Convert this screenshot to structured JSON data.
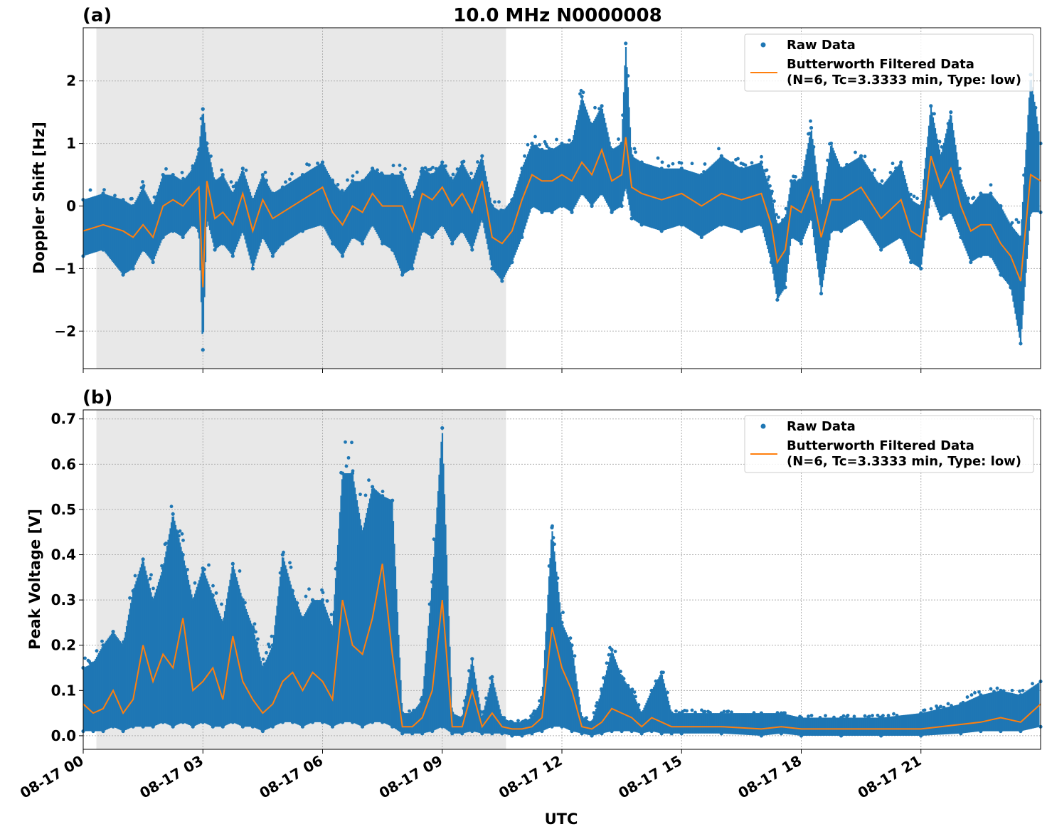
{
  "figure": {
    "title": "10.0 MHz N0000008",
    "xlabel": "UTC",
    "x_tick_labels": [
      "08-17 00",
      "08-17 03",
      "08-17 06",
      "08-17 09",
      "08-17 12",
      "08-17 15",
      "08-17 18",
      "08-17 21"
    ],
    "colors": {
      "raw": "#1f77b4",
      "filtered": "#ff7f0e",
      "shade": "#e8e8e8",
      "grid": "#b0b0b0"
    }
  },
  "legend": {
    "raw_label": "Raw Data",
    "filtered_line1": "Butterworth Filtered Data",
    "filtered_line2": "(N=6, Tc=3.3333 min, Type: low)"
  },
  "chart_data": [
    {
      "type": "scatter",
      "panel_label": "(a)",
      "title": "10.0 MHz N0000008",
      "xlabel": "",
      "ylabel": "Doppler Shift [Hz]",
      "x_unit": "hours UTC on 08-17",
      "xlim": [
        0,
        24
      ],
      "ylim": [
        -2.6,
        2.85
      ],
      "yticks": [
        -2,
        -1,
        0,
        1,
        2
      ],
      "ytick_labels": [
        "−2",
        "−1",
        "0",
        "1",
        "2"
      ],
      "grid": true,
      "legend_position": "upper-right",
      "shaded_interval": [
        0.33,
        10.6
      ],
      "series": [
        {
          "name": "Butterworth Filtered Data",
          "kind": "line",
          "x": [
            0,
            0.5,
            1,
            1.25,
            1.5,
            1.75,
            2,
            2.25,
            2.5,
            2.75,
            2.9,
            3.0,
            3.1,
            3.3,
            3.5,
            3.75,
            4,
            4.25,
            4.5,
            4.75,
            5,
            5.5,
            6,
            6.25,
            6.5,
            6.75,
            7,
            7.25,
            7.5,
            7.75,
            8,
            8.25,
            8.5,
            8.75,
            9,
            9.25,
            9.5,
            9.75,
            10,
            10.25,
            10.5,
            10.75,
            11,
            11.25,
            11.5,
            11.75,
            12,
            12.25,
            12.5,
            12.75,
            13,
            13.25,
            13.5,
            13.6,
            13.75,
            14,
            14.5,
            15,
            15.5,
            16,
            16.5,
            17,
            17.25,
            17.4,
            17.6,
            17.75,
            18,
            18.25,
            18.5,
            18.75,
            19,
            19.5,
            20,
            20.5,
            20.75,
            21,
            21.25,
            21.5,
            21.75,
            22,
            22.25,
            22.5,
            22.75,
            23,
            23.25,
            23.5,
            23.75,
            24
          ],
          "y": [
            -0.4,
            -0.3,
            -0.4,
            -0.5,
            -0.3,
            -0.5,
            0.0,
            0.1,
            0.0,
            0.2,
            0.3,
            -1.3,
            0.4,
            -0.2,
            -0.1,
            -0.3,
            0.2,
            -0.4,
            0.1,
            -0.2,
            -0.1,
            0.1,
            0.3,
            -0.1,
            -0.3,
            0.0,
            -0.1,
            0.2,
            0.0,
            0.0,
            0.0,
            -0.4,
            0.2,
            0.1,
            0.3,
            0.0,
            0.2,
            -0.1,
            0.4,
            -0.5,
            -0.6,
            -0.4,
            0.1,
            0.5,
            0.4,
            0.4,
            0.5,
            0.4,
            0.7,
            0.5,
            0.9,
            0.4,
            0.5,
            1.1,
            0.3,
            0.2,
            0.1,
            0.2,
            0.0,
            0.2,
            0.1,
            0.2,
            -0.3,
            -0.9,
            -0.7,
            0.0,
            -0.1,
            0.3,
            -0.5,
            0.1,
            0.1,
            0.3,
            -0.2,
            0.1,
            -0.4,
            -0.5,
            0.8,
            0.3,
            0.6,
            0.0,
            -0.4,
            -0.3,
            -0.3,
            -0.6,
            -0.8,
            -1.2,
            0.5,
            0.4
          ]
        },
        {
          "name": "Raw Data",
          "kind": "scatter-envelope",
          "x": [
            0,
            0.5,
            1,
            1.25,
            1.5,
            1.75,
            2,
            2.25,
            2.5,
            2.75,
            2.9,
            3.0,
            3.1,
            3.3,
            3.5,
            3.75,
            4,
            4.25,
            4.5,
            4.75,
            5,
            5.5,
            6,
            6.25,
            6.5,
            6.75,
            7,
            7.25,
            7.5,
            7.75,
            8,
            8.25,
            8.5,
            8.75,
            9,
            9.25,
            9.5,
            9.75,
            10,
            10.25,
            10.5,
            10.75,
            11,
            11.25,
            11.5,
            11.75,
            12,
            12.25,
            12.5,
            12.75,
            13,
            13.25,
            13.5,
            13.6,
            13.75,
            14,
            14.5,
            15,
            15.5,
            16,
            16.5,
            17,
            17.25,
            17.4,
            17.6,
            17.75,
            18,
            18.25,
            18.5,
            18.75,
            19,
            19.5,
            20,
            20.5,
            20.75,
            21,
            21.25,
            21.5,
            21.75,
            22,
            22.25,
            22.5,
            22.75,
            23,
            23.25,
            23.5,
            23.75,
            24
          ],
          "y_min": [
            -0.8,
            -0.7,
            -1.1,
            -1.0,
            -0.7,
            -0.9,
            -0.5,
            -0.4,
            -0.5,
            -0.3,
            -0.4,
            -2.3,
            -0.2,
            -0.7,
            -0.6,
            -0.8,
            -0.4,
            -1.0,
            -0.5,
            -0.8,
            -0.6,
            -0.4,
            -0.3,
            -0.6,
            -0.8,
            -0.5,
            -0.6,
            -0.3,
            -0.6,
            -0.7,
            -1.1,
            -1.0,
            -0.4,
            -0.5,
            -0.3,
            -0.6,
            -0.4,
            -0.7,
            -0.2,
            -1.0,
            -1.2,
            -0.9,
            -0.5,
            0.0,
            -0.1,
            -0.1,
            0.0,
            -0.1,
            0.2,
            0.0,
            0.2,
            -0.1,
            0.0,
            0.3,
            -0.2,
            -0.3,
            -0.4,
            -0.3,
            -0.5,
            -0.3,
            -0.4,
            -0.3,
            -0.9,
            -1.5,
            -1.3,
            -0.5,
            -0.6,
            -0.2,
            -1.4,
            -0.4,
            -0.4,
            -0.2,
            -0.7,
            -0.5,
            -0.9,
            -1.0,
            0.2,
            -0.2,
            -0.1,
            -0.5,
            -0.9,
            -0.8,
            -0.8,
            -1.1,
            -1.3,
            -2.2,
            -0.1,
            -0.1
          ],
          "y_max": [
            0.1,
            0.2,
            0.1,
            0.0,
            0.3,
            0.0,
            0.5,
            0.5,
            0.4,
            0.6,
            0.9,
            1.55,
            1.0,
            0.4,
            0.5,
            0.2,
            0.6,
            0.1,
            0.5,
            0.2,
            0.3,
            0.5,
            0.7,
            0.4,
            0.2,
            0.4,
            0.4,
            0.6,
            0.5,
            0.5,
            0.5,
            0.1,
            0.6,
            0.5,
            0.7,
            0.4,
            0.7,
            0.4,
            0.8,
            0.0,
            -0.1,
            0.1,
            0.6,
            1.0,
            0.9,
            0.9,
            1.0,
            1.0,
            1.75,
            1.3,
            1.6,
            0.9,
            1.0,
            2.6,
            0.8,
            0.7,
            0.6,
            0.6,
            0.5,
            0.8,
            0.6,
            0.7,
            0.2,
            -0.3,
            -0.2,
            0.4,
            0.4,
            1.25,
            0.0,
            1.0,
            0.6,
            0.8,
            0.3,
            0.7,
            0.1,
            0.0,
            1.6,
            0.8,
            1.5,
            0.4,
            0.0,
            0.2,
            0.2,
            0.0,
            -0.3,
            -0.5,
            2.1,
            1.0
          ]
        }
      ]
    },
    {
      "type": "scatter",
      "panel_label": "(b)",
      "title": "",
      "xlabel": "UTC",
      "ylabel": "Peak Voltage [V]",
      "x_unit": "hours UTC on 08-17",
      "xlim": [
        0,
        24
      ],
      "ylim": [
        -0.03,
        0.72
      ],
      "yticks": [
        0.0,
        0.1,
        0.2,
        0.3,
        0.4,
        0.5,
        0.6,
        0.7
      ],
      "ytick_labels": [
        "0.0",
        "0.1",
        "0.2",
        "0.3",
        "0.4",
        "0.5",
        "0.6",
        "0.7"
      ],
      "grid": true,
      "legend_position": "upper-right",
      "shaded_interval": [
        0.33,
        10.6
      ],
      "series": [
        {
          "name": "Butterworth Filtered Data",
          "kind": "line",
          "x": [
            0,
            0.25,
            0.5,
            0.75,
            1,
            1.25,
            1.5,
            1.75,
            2,
            2.25,
            2.5,
            2.75,
            3,
            3.25,
            3.5,
            3.75,
            4,
            4.25,
            4.5,
            4.75,
            5,
            5.25,
            5.5,
            5.75,
            6,
            6.25,
            6.5,
            6.75,
            7,
            7.25,
            7.5,
            7.75,
            8,
            8.25,
            8.5,
            8.75,
            9,
            9.25,
            9.5,
            9.75,
            10,
            10.25,
            10.5,
            10.75,
            11,
            11.25,
            11.5,
            11.75,
            12,
            12.25,
            12.5,
            12.75,
            13,
            13.25,
            13.5,
            13.75,
            14,
            14.25,
            14.5,
            14.75,
            15,
            16,
            17,
            17.5,
            18,
            19,
            20,
            21,
            22,
            22.5,
            23,
            23.5,
            24
          ],
          "y": [
            0.07,
            0.05,
            0.06,
            0.1,
            0.05,
            0.08,
            0.2,
            0.12,
            0.18,
            0.15,
            0.26,
            0.1,
            0.12,
            0.15,
            0.08,
            0.22,
            0.12,
            0.08,
            0.05,
            0.07,
            0.12,
            0.14,
            0.1,
            0.14,
            0.12,
            0.08,
            0.3,
            0.2,
            0.18,
            0.26,
            0.38,
            0.18,
            0.02,
            0.02,
            0.04,
            0.1,
            0.3,
            0.02,
            0.02,
            0.1,
            0.02,
            0.05,
            0.02,
            0.015,
            0.015,
            0.02,
            0.04,
            0.24,
            0.15,
            0.1,
            0.02,
            0.015,
            0.03,
            0.06,
            0.05,
            0.04,
            0.02,
            0.04,
            0.03,
            0.02,
            0.02,
            0.02,
            0.015,
            0.02,
            0.015,
            0.015,
            0.015,
            0.015,
            0.025,
            0.03,
            0.04,
            0.03,
            0.07
          ]
        },
        {
          "name": "Raw Data",
          "kind": "scatter-envelope",
          "x": [
            0,
            0.25,
            0.5,
            0.75,
            1,
            1.25,
            1.5,
            1.75,
            2,
            2.25,
            2.5,
            2.75,
            3,
            3.25,
            3.5,
            3.75,
            4,
            4.25,
            4.5,
            4.75,
            5,
            5.25,
            5.5,
            5.75,
            6,
            6.25,
            6.5,
            6.75,
            7,
            7.25,
            7.5,
            7.75,
            8,
            8.25,
            8.5,
            8.75,
            9,
            9.25,
            9.5,
            9.75,
            10,
            10.25,
            10.5,
            10.75,
            11,
            11.25,
            11.5,
            11.75,
            12,
            12.25,
            12.5,
            12.75,
            13,
            13.25,
            13.5,
            13.75,
            14,
            14.25,
            14.5,
            14.75,
            15,
            16,
            17,
            17.5,
            18,
            19,
            20,
            21,
            22,
            22.5,
            23,
            23.5,
            24
          ],
          "y_min": [
            0.01,
            0.01,
            0.01,
            0.02,
            0.01,
            0.02,
            0.02,
            0.02,
            0.03,
            0.02,
            0.03,
            0.02,
            0.03,
            0.02,
            0.02,
            0.03,
            0.02,
            0.02,
            0.01,
            0.02,
            0.03,
            0.03,
            0.02,
            0.03,
            0.03,
            0.02,
            0.03,
            0.03,
            0.02,
            0.03,
            0.03,
            0.02,
            0.005,
            0.005,
            0.005,
            0.01,
            0.02,
            0.005,
            0.005,
            0.01,
            0.005,
            0.005,
            0.005,
            0.0,
            0.0,
            0.005,
            0.01,
            0.02,
            0.02,
            0.01,
            0.005,
            0.0,
            0.005,
            0.01,
            0.01,
            0.01,
            0.005,
            0.01,
            0.005,
            0.005,
            0.005,
            0.005,
            0.0,
            0.005,
            0.0,
            0.0,
            0.0,
            0.0,
            0.005,
            0.01,
            0.01,
            0.01,
            0.02
          ],
          "y_max": [
            0.15,
            0.16,
            0.2,
            0.23,
            0.2,
            0.32,
            0.39,
            0.3,
            0.37,
            0.49,
            0.4,
            0.3,
            0.37,
            0.31,
            0.25,
            0.38,
            0.3,
            0.24,
            0.15,
            0.2,
            0.4,
            0.32,
            0.26,
            0.3,
            0.3,
            0.24,
            0.58,
            0.58,
            0.45,
            0.55,
            0.53,
            0.52,
            0.05,
            0.05,
            0.08,
            0.34,
            0.68,
            0.05,
            0.04,
            0.17,
            0.04,
            0.13,
            0.04,
            0.03,
            0.03,
            0.04,
            0.08,
            0.46,
            0.25,
            0.2,
            0.04,
            0.03,
            0.1,
            0.19,
            0.13,
            0.1,
            0.05,
            0.1,
            0.14,
            0.05,
            0.05,
            0.05,
            0.05,
            0.05,
            0.04,
            0.04,
            0.04,
            0.05,
            0.07,
            0.09,
            0.1,
            0.09,
            0.12
          ]
        }
      ]
    }
  ]
}
